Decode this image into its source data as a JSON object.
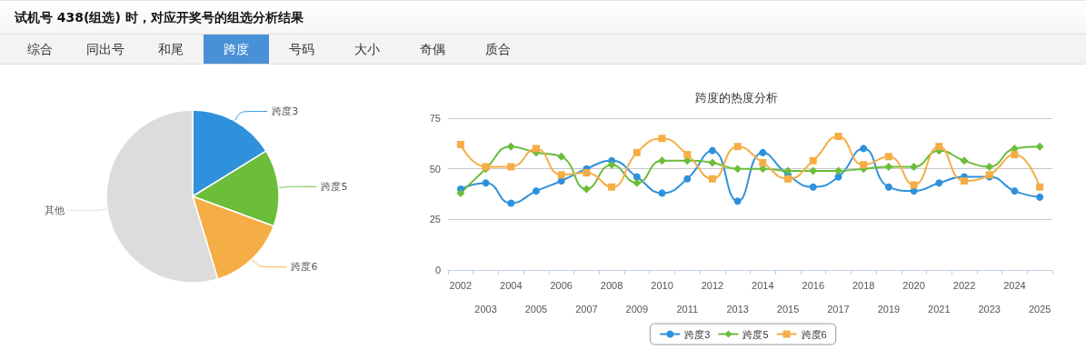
{
  "chart_data": [
    {
      "type": "other",
      "title": "试机号 438(组选) 时，对应开奖号的组选分析结果",
      "annotations": [
        "综合",
        "同出号",
        "和尾",
        "跨度",
        "号码",
        "大小",
        "奇偶",
        "质合"
      ]
    },
    {
      "type": "pie",
      "categories": [
        "跨度3",
        "跨度5",
        "跨度6",
        "其他"
      ],
      "values": [
        16.2,
        14.4,
        14.7,
        54.7
      ],
      "colors": [
        "#2f91dc",
        "#6bbd3a",
        "#f5ad46",
        "#dcdcdc"
      ]
    },
    {
      "type": "line",
      "title": "跨度的热度分析",
      "categories": [
        "2002",
        "2003",
        "2004",
        "2005",
        "2006",
        "2007",
        "2008",
        "2009",
        "2010",
        "2011",
        "2012",
        "2013",
        "2014",
        "2015",
        "2016",
        "2017",
        "2018",
        "2019",
        "2020",
        "2021",
        "2022",
        "2023",
        "2024",
        "2025"
      ],
      "ylim": [
        0,
        75
      ],
      "yticks": [
        0,
        25,
        50,
        75
      ],
      "grid": "y",
      "legend": "bottom",
      "series": [
        {
          "name": "跨度3",
          "color": "#2f91dc",
          "marker": "circle",
          "values": [
            40,
            43,
            33,
            39,
            44,
            50,
            54,
            46,
            38,
            45,
            59,
            34,
            58,
            47,
            41,
            46,
            60,
            41,
            39,
            43,
            46,
            46,
            39,
            36
          ]
        },
        {
          "name": "跨度5",
          "color": "#6bbd3a",
          "marker": "diamond",
          "values": [
            38,
            50,
            61,
            58,
            56,
            40,
            52,
            43,
            54,
            54,
            53,
            50,
            50,
            49,
            49,
            49,
            50,
            51,
            51,
            59,
            54,
            51,
            60,
            61
          ]
        },
        {
          "name": "跨度6",
          "color": "#f5ad46",
          "marker": "square",
          "values": [
            62,
            51,
            51,
            60,
            47,
            48,
            41,
            58,
            65,
            57,
            45,
            61,
            53,
            45,
            54,
            66,
            52,
            56,
            42,
            61,
            44,
            47,
            57,
            41
          ]
        }
      ]
    }
  ]
}
